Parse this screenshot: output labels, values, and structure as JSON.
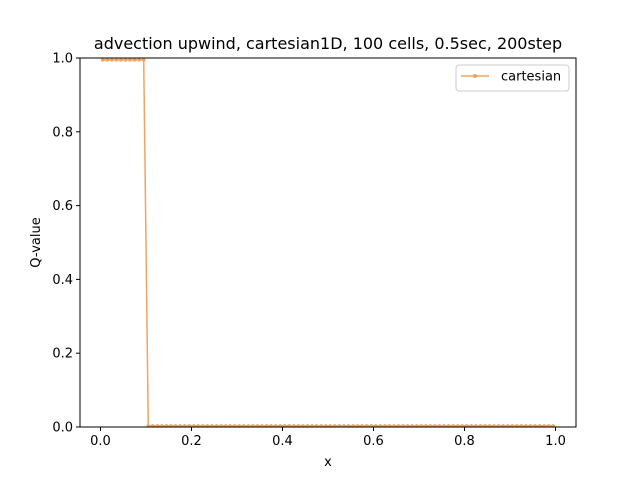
{
  "chart_data": {
    "type": "line",
    "title": "advection upwind, cartesian1D, 100 cells, 0.5sec, 200step",
    "xlabel": "x",
    "ylabel": "Q-value",
    "xlim": [
      -0.045,
      1.045
    ],
    "ylim": [
      0.0,
      1.0
    ],
    "x_ticks": [
      0.0,
      0.2,
      0.4,
      0.6,
      0.8,
      1.0
    ],
    "x_tick_labels": [
      "0.0",
      "0.2",
      "0.4",
      "0.6",
      "0.8",
      "1.0"
    ],
    "y_ticks": [
      0.0,
      0.2,
      0.4,
      0.6,
      0.8,
      1.0
    ],
    "y_tick_labels": [
      "0.0",
      "0.2",
      "0.4",
      "0.6",
      "0.8",
      "1.0"
    ],
    "grid": false,
    "legend_position": "top-right",
    "series": [
      {
        "name": "cartesian",
        "color": "#f4a261",
        "marker": "circle",
        "x_start": 0.005,
        "x_step": 0.01,
        "count": 100,
        "values": [
          0.995,
          0.995,
          0.995,
          0.995,
          0.995,
          0.995,
          0.995,
          0.995,
          0.995,
          0.995,
          0.003,
          0.003,
          0.003,
          0.003,
          0.003,
          0.003,
          0.003,
          0.003,
          0.003,
          0.003,
          0.003,
          0.003,
          0.003,
          0.003,
          0.003,
          0.003,
          0.003,
          0.003,
          0.003,
          0.003,
          0.003,
          0.003,
          0.003,
          0.003,
          0.003,
          0.003,
          0.003,
          0.003,
          0.003,
          0.003,
          0.003,
          0.003,
          0.003,
          0.003,
          0.003,
          0.003,
          0.003,
          0.003,
          0.003,
          0.003,
          0.003,
          0.003,
          0.003,
          0.003,
          0.003,
          0.003,
          0.003,
          0.003,
          0.003,
          0.003,
          0.003,
          0.003,
          0.003,
          0.003,
          0.003,
          0.003,
          0.003,
          0.003,
          0.003,
          0.003,
          0.003,
          0.003,
          0.003,
          0.003,
          0.003,
          0.003,
          0.003,
          0.003,
          0.003,
          0.003,
          0.003,
          0.003,
          0.003,
          0.003,
          0.003,
          0.003,
          0.003,
          0.003,
          0.003,
          0.003,
          0.003,
          0.003,
          0.003,
          0.003,
          0.003,
          0.003,
          0.003,
          0.003,
          0.003,
          0.003
        ]
      }
    ]
  }
}
